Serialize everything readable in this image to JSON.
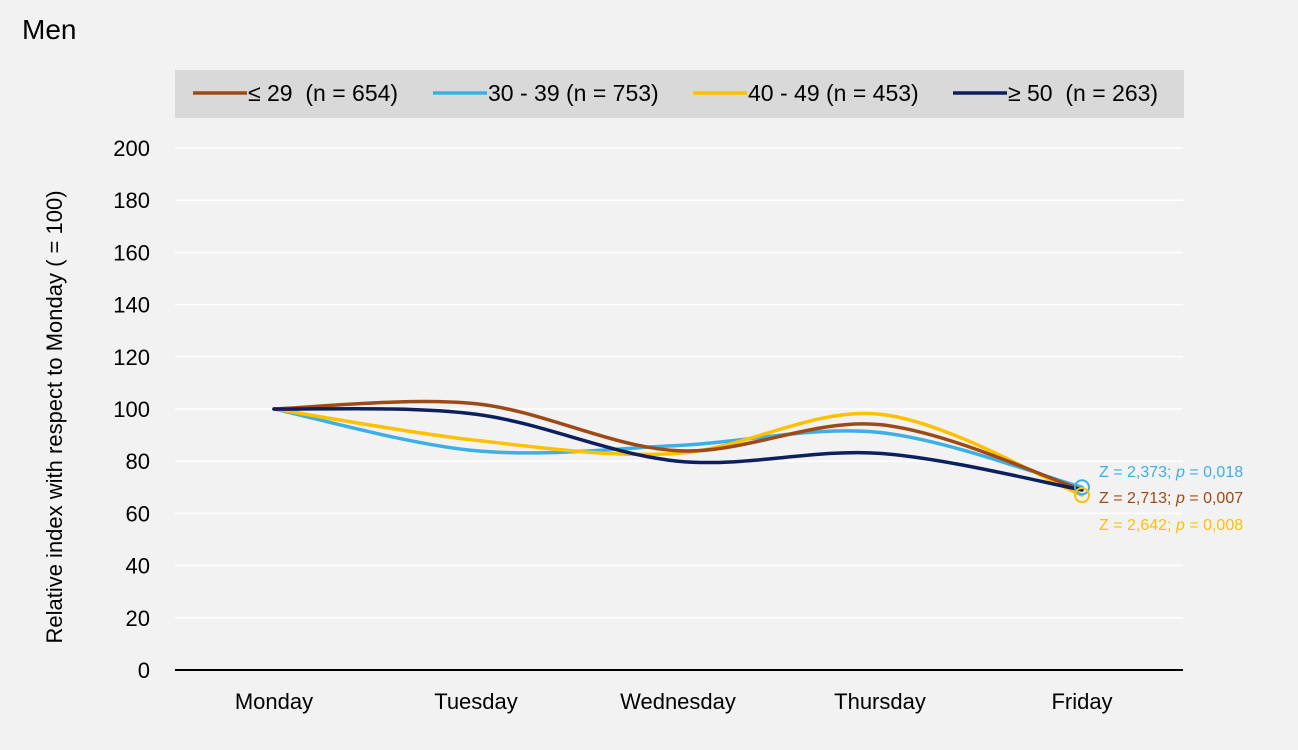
{
  "panel_title": "Men",
  "chart_data": {
    "type": "line",
    "categories": [
      "Monday",
      "Tuesday",
      "Wednesday",
      "Thursday",
      "Friday"
    ],
    "ylabel": "Relative index with respect to Monday ( = 100)",
    "xlabel": "",
    "ylim": [
      0,
      200
    ],
    "yticks": [
      0,
      20,
      40,
      60,
      80,
      100,
      120,
      140,
      160,
      180,
      200
    ],
    "grid": true,
    "legend_position": "top",
    "series": [
      {
        "name": "≤ 29  (n = 654)",
        "color": "#9e4a16",
        "values": [
          100,
          102,
          84,
          94,
          69
        ]
      },
      {
        "name": "30 - 39 (n = 753)",
        "color": "#3cb0e6",
        "values": [
          100,
          84,
          86,
          91,
          70
        ]
      },
      {
        "name": "40 - 49 (n = 453)",
        "color": "#ffc000",
        "values": [
          100,
          88,
          83,
          98,
          67
        ]
      },
      {
        "name": "≥ 50  (n = 263)",
        "color": "#0d1f5c",
        "values": [
          100,
          98,
          80,
          83,
          69
        ]
      }
    ],
    "annotations": [
      {
        "prefix": "Z = 2,373; ",
        "p": "p",
        "suffix": " = 0,018",
        "color": "#3cb0e6"
      },
      {
        "prefix": "Z = 2,713; ",
        "p": "p",
        "suffix": " = 0,007",
        "color": "#9e4a16"
      },
      {
        "prefix": "Z = 2,642; ",
        "p": "p",
        "suffix": " = 0,008",
        "color": "#ffc000"
      }
    ],
    "markers": [
      {
        "category": "Friday",
        "value": 70,
        "color": "#3cb0e6"
      },
      {
        "category": "Friday",
        "value": 67,
        "color": "#ffc000"
      }
    ]
  }
}
